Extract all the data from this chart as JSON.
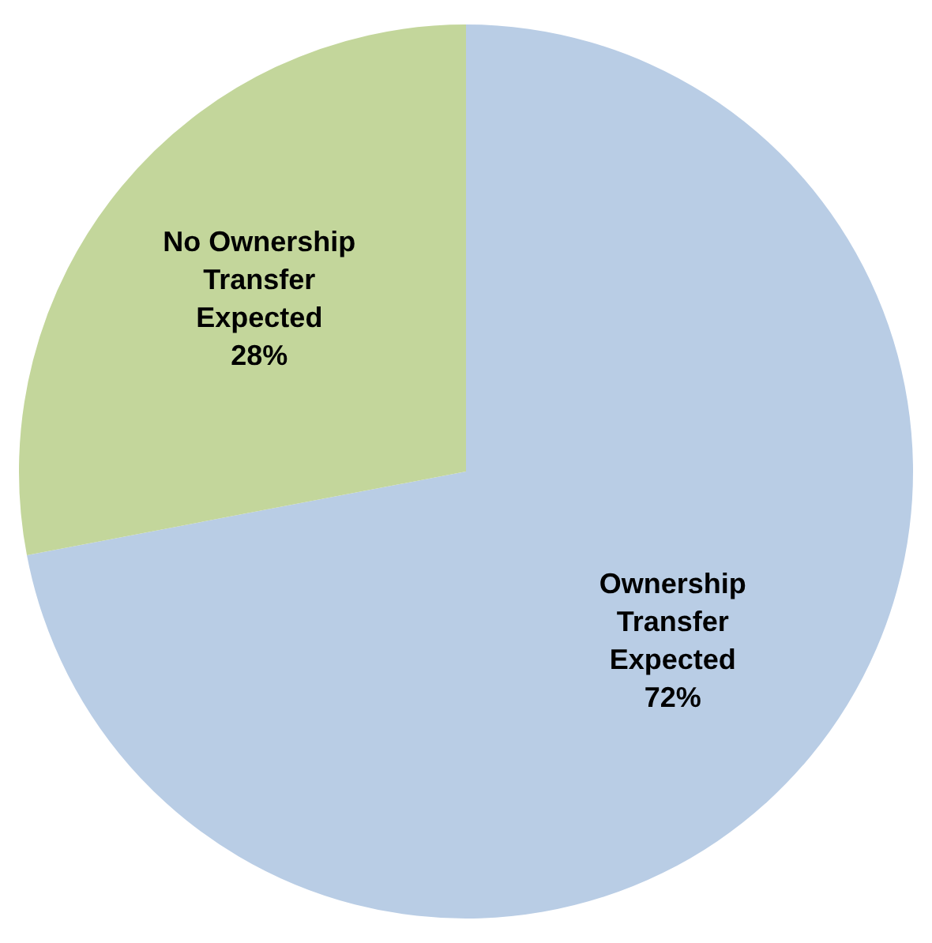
{
  "chart_data": {
    "type": "pie",
    "categories": [
      "Ownership Transfer Expected",
      "No Ownership Transfer Expected"
    ],
    "values": [
      72,
      28
    ],
    "colors": [
      "#b9cde5",
      "#c3d69b"
    ],
    "value_labels": [
      "72%",
      "28%"
    ],
    "legend": false
  }
}
